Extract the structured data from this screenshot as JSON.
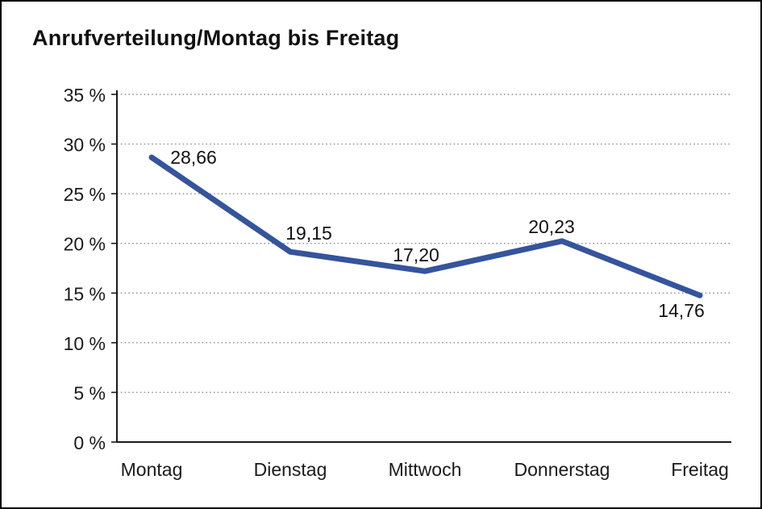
{
  "title": "Anrufverteilung/Montag bis Freitag",
  "colors": {
    "line": "#34549C",
    "grid": "#8F8F8F",
    "axis": "#1A1A1A",
    "text": "#111111",
    "background": "#FFFFFF"
  },
  "chart_data": {
    "type": "line",
    "title": "Anrufverteilung/Montag bis Freitag",
    "categories": [
      "Montag",
      "Dienstag",
      "Mittwoch",
      "Donnerstag",
      "Freitag"
    ],
    "values": [
      28.66,
      19.15,
      17.2,
      20.23,
      14.76
    ],
    "value_labels": [
      "28,66",
      "19,15",
      "17,20",
      "20,23",
      "14,76"
    ],
    "xlabel": "",
    "ylabel": "",
    "ylim": [
      0,
      35
    ],
    "ytick_step": 5,
    "ytick_labels": [
      "0 %",
      "5 %",
      "10 %",
      "15 %",
      "20 %",
      "25 %",
      "30 %",
      "35 %"
    ],
    "grid": "horizontal-dotted",
    "legend_position": "none",
    "line_color": "#34549C"
  }
}
